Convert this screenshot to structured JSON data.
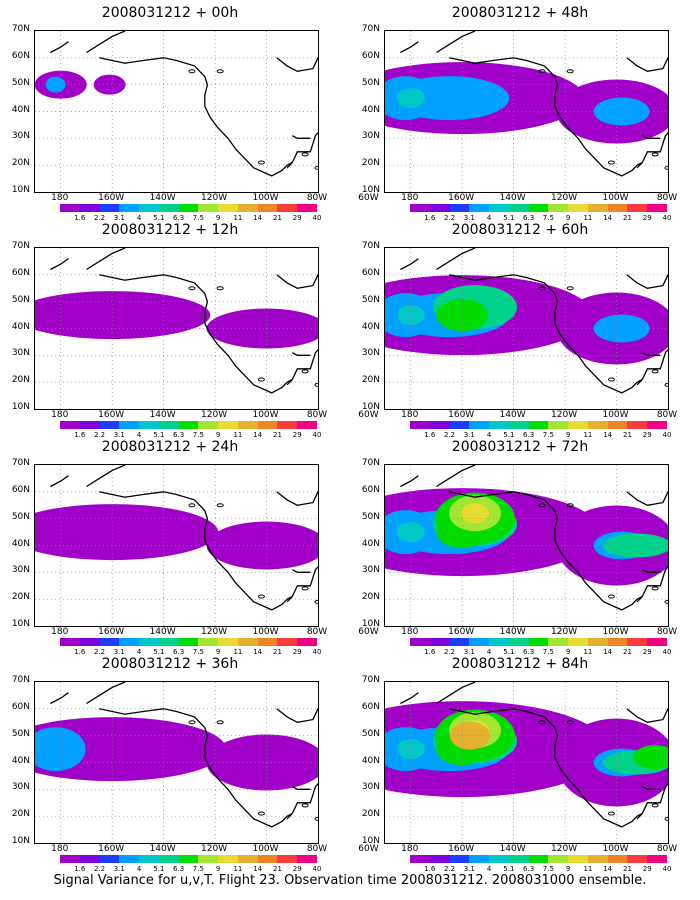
{
  "panels": [
    {
      "title": "2008031212 + 00h",
      "intensity": 0
    },
    {
      "title": "2008031212 + 48h",
      "intensity": 4
    },
    {
      "title": "2008031212 + 12h",
      "intensity": 1
    },
    {
      "title": "2008031212 + 60h",
      "intensity": 5
    },
    {
      "title": "2008031212 + 24h",
      "intensity": 2
    },
    {
      "title": "2008031212 + 72h",
      "intensity": 6
    },
    {
      "title": "2008031212 + 36h",
      "intensity": 3
    },
    {
      "title": "2008031212 + 84h",
      "intensity": 7
    }
  ],
  "lat_labels": [
    "70N",
    "60N",
    "50N",
    "40N",
    "30N",
    "20N",
    "10N"
  ],
  "lon_labels": [
    "180",
    "160W",
    "140W",
    "120W",
    "100W",
    "80W",
    "60W"
  ],
  "colorbar": {
    "labels": [
      "1.6",
      "2.2",
      "3.1",
      "4",
      "5.1",
      "6.3",
      "7.5",
      "9",
      "11",
      "14",
      "21",
      "29",
      "40"
    ],
    "colors": [
      "#a000c8",
      "#8200dc",
      "#1e3cff",
      "#00a0ff",
      "#00c8c8",
      "#00d28c",
      "#00dc00",
      "#a0e632",
      "#e6dc32",
      "#e6af2d",
      "#f08228",
      "#fa3c3c",
      "#f00082"
    ]
  },
  "caption": "Signal Variance for u,v,T. Flight 23. Observation time 2008031212. 2008031000 ensemble."
}
